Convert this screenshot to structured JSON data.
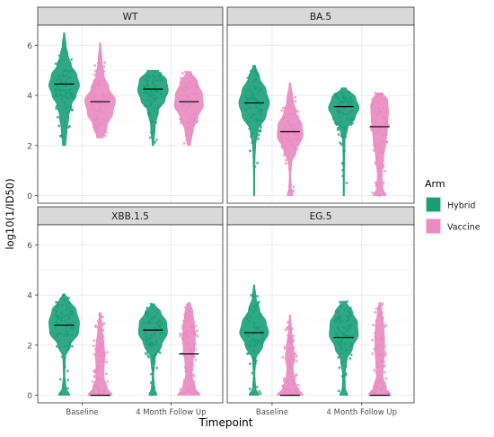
{
  "chart_data": {
    "type": "violin",
    "xlabel": "Timepoint",
    "ylabel": "log10(1/ID50)",
    "ylim": [
      -0.3,
      6.8
    ],
    "y_ticks": [
      0,
      2,
      4,
      6
    ],
    "categories": [
      "Baseline",
      "4 Month Follow Up"
    ],
    "legend": {
      "title": "Arm",
      "placement": "right",
      "entries": [
        {
          "name": "Hybrid",
          "color": "#1a9e77"
        },
        {
          "name": "Vaccine",
          "color": "#e98ac1"
        }
      ]
    },
    "colors": {
      "Hybrid": "#1a9e77",
      "Vaccine": "#e98ac1",
      "strip": "#d9d9d9",
      "panel_border": "#333333",
      "grid": "#ebebeb"
    },
    "panels": [
      {
        "title": "WT",
        "groups": [
          {
            "timepoint": "Baseline",
            "arm": "Hybrid",
            "median": 4.45,
            "profile": [
              [
                2.0,
                0.1
              ],
              [
                2.6,
                0.18
              ],
              [
                3.2,
                0.3
              ],
              [
                3.6,
                0.45
              ],
              [
                4.0,
                0.75
              ],
              [
                4.4,
                0.95
              ],
              [
                4.8,
                0.8
              ],
              [
                5.2,
                0.45
              ],
              [
                5.6,
                0.25
              ],
              [
                6.0,
                0.12
              ],
              [
                6.5,
                0.04
              ]
            ]
          },
          {
            "timepoint": "Baseline",
            "arm": "Vaccine",
            "median": 3.75,
            "profile": [
              [
                2.3,
                0.2
              ],
              [
                2.8,
                0.45
              ],
              [
                3.3,
                0.8
              ],
              [
                3.8,
                0.95
              ],
              [
                4.3,
                0.55
              ],
              [
                4.8,
                0.25
              ],
              [
                5.4,
                0.12
              ],
              [
                6.1,
                0.04
              ]
            ]
          },
          {
            "timepoint": "4 Month Follow Up",
            "arm": "Hybrid",
            "median": 4.25,
            "profile": [
              [
                2.0,
                0.05
              ],
              [
                2.8,
                0.15
              ],
              [
                3.4,
                0.35
              ],
              [
                3.8,
                0.75
              ],
              [
                4.2,
                0.95
              ],
              [
                4.6,
                0.85
              ],
              [
                5.0,
                0.35
              ]
            ]
          },
          {
            "timepoint": "4 Month Follow Up",
            "arm": "Vaccine",
            "median": 3.75,
            "profile": [
              [
                2.0,
                0.1
              ],
              [
                2.6,
                0.25
              ],
              [
                3.1,
                0.55
              ],
              [
                3.6,
                0.9
              ],
              [
                4.0,
                0.85
              ],
              [
                4.5,
                0.55
              ],
              [
                4.95,
                0.15
              ]
            ]
          }
        ]
      },
      {
        "title": "BA.5",
        "groups": [
          {
            "timepoint": "Baseline",
            "arm": "Hybrid",
            "median": 3.7,
            "profile": [
              [
                0.0,
                0.04
              ],
              [
                0.8,
                0.04
              ],
              [
                1.5,
                0.06
              ],
              [
                2.0,
                0.1
              ],
              [
                2.6,
                0.25
              ],
              [
                3.2,
                0.75
              ],
              [
                3.7,
                0.95
              ],
              [
                4.2,
                0.75
              ],
              [
                4.7,
                0.35
              ],
              [
                5.2,
                0.08
              ]
            ]
          },
          {
            "timepoint": "Baseline",
            "arm": "Vaccine",
            "median": 2.55,
            "profile": [
              [
                0.0,
                0.18
              ],
              [
                0.3,
                0.08
              ],
              [
                0.8,
                0.05
              ],
              [
                1.3,
                0.1
              ],
              [
                1.8,
                0.4
              ],
              [
                2.4,
                0.8
              ],
              [
                2.8,
                0.75
              ],
              [
                3.3,
                0.4
              ],
              [
                3.8,
                0.2
              ],
              [
                4.5,
                0.05
              ]
            ]
          },
          {
            "timepoint": "4 Month Follow Up",
            "arm": "Hybrid",
            "median": 3.55,
            "profile": [
              [
                0.0,
                0.04
              ],
              [
                0.8,
                0.04
              ],
              [
                1.5,
                0.05
              ],
              [
                2.2,
                0.08
              ],
              [
                2.7,
                0.25
              ],
              [
                3.1,
                0.7
              ],
              [
                3.5,
                0.95
              ],
              [
                3.9,
                0.75
              ],
              [
                4.3,
                0.15
              ]
            ]
          },
          {
            "timepoint": "4 Month Follow Up",
            "arm": "Vaccine",
            "median": 2.75,
            "profile": [
              [
                0.0,
                0.4
              ],
              [
                0.3,
                0.2
              ],
              [
                0.8,
                0.15
              ],
              [
                1.5,
                0.25
              ],
              [
                2.2,
                0.4
              ],
              [
                2.8,
                0.5
              ],
              [
                3.4,
                0.55
              ],
              [
                3.8,
                0.5
              ],
              [
                4.1,
                0.2
              ]
            ]
          }
        ]
      },
      {
        "title": "XBB.1.5",
        "groups": [
          {
            "timepoint": "Baseline",
            "arm": "Hybrid",
            "median": 2.8,
            "profile": [
              [
                0.0,
                0.35
              ],
              [
                0.3,
                0.12
              ],
              [
                0.8,
                0.05
              ],
              [
                1.5,
                0.08
              ],
              [
                2.0,
                0.4
              ],
              [
                2.5,
                0.9
              ],
              [
                2.9,
                0.95
              ],
              [
                3.4,
                0.75
              ],
              [
                3.8,
                0.3
              ],
              [
                4.05,
                0.05
              ]
            ]
          },
          {
            "timepoint": "Baseline",
            "arm": "Vaccine",
            "median": 0.0,
            "profile": [
              [
                0.0,
                0.75
              ],
              [
                0.3,
                0.45
              ],
              [
                0.7,
                0.25
              ],
              [
                1.1,
                0.25
              ],
              [
                1.6,
                0.3
              ],
              [
                2.0,
                0.25
              ],
              [
                2.6,
                0.15
              ],
              [
                3.3,
                0.05
              ]
            ]
          },
          {
            "timepoint": "4 Month Follow Up",
            "arm": "Hybrid",
            "median": 2.6,
            "profile": [
              [
                0.0,
                0.25
              ],
              [
                0.3,
                0.1
              ],
              [
                0.8,
                0.05
              ],
              [
                1.5,
                0.15
              ],
              [
                2.0,
                0.55
              ],
              [
                2.5,
                0.9
              ],
              [
                2.9,
                0.85
              ],
              [
                3.3,
                0.5
              ],
              [
                3.65,
                0.1
              ]
            ]
          },
          {
            "timepoint": "4 Month Follow Up",
            "arm": "Vaccine",
            "median": 1.65,
            "profile": [
              [
                0.0,
                0.7
              ],
              [
                0.3,
                0.4
              ],
              [
                0.8,
                0.2
              ],
              [
                1.3,
                0.25
              ],
              [
                1.8,
                0.35
              ],
              [
                2.3,
                0.4
              ],
              [
                2.8,
                0.35
              ],
              [
                3.3,
                0.25
              ],
              [
                3.7,
                0.08
              ]
            ]
          }
        ]
      },
      {
        "title": "EG.5",
        "groups": [
          {
            "timepoint": "Baseline",
            "arm": "Hybrid",
            "median": 2.5,
            "profile": [
              [
                0.0,
                0.3
              ],
              [
                0.3,
                0.1
              ],
              [
                0.8,
                0.05
              ],
              [
                1.4,
                0.1
              ],
              [
                2.0,
                0.55
              ],
              [
                2.5,
                0.9
              ],
              [
                2.9,
                0.75
              ],
              [
                3.4,
                0.35
              ],
              [
                3.9,
                0.12
              ],
              [
                4.4,
                0.04
              ]
            ]
          },
          {
            "timepoint": "Baseline",
            "arm": "Vaccine",
            "median": 0.0,
            "profile": [
              [
                0.0,
                0.8
              ],
              [
                0.3,
                0.45
              ],
              [
                0.7,
                0.25
              ],
              [
                1.1,
                0.2
              ],
              [
                1.5,
                0.3
              ],
              [
                2.0,
                0.2
              ],
              [
                2.6,
                0.1
              ],
              [
                3.2,
                0.04
              ]
            ]
          },
          {
            "timepoint": "4 Month Follow Up",
            "arm": "Hybrid",
            "median": 2.3,
            "profile": [
              [
                0.0,
                0.25
              ],
              [
                0.3,
                0.1
              ],
              [
                0.8,
                0.08
              ],
              [
                1.4,
                0.2
              ],
              [
                1.9,
                0.55
              ],
              [
                2.4,
                0.9
              ],
              [
                2.9,
                0.85
              ],
              [
                3.3,
                0.55
              ],
              [
                3.75,
                0.15
              ]
            ]
          },
          {
            "timepoint": "4 Month Follow Up",
            "arm": "Vaccine",
            "median": 0.0,
            "profile": [
              [
                0.0,
                0.7
              ],
              [
                0.3,
                0.4
              ],
              [
                0.8,
                0.2
              ],
              [
                1.3,
                0.25
              ],
              [
                1.8,
                0.3
              ],
              [
                2.3,
                0.3
              ],
              [
                2.8,
                0.25
              ],
              [
                3.3,
                0.15
              ],
              [
                3.7,
                0.05
              ]
            ]
          }
        ]
      }
    ]
  }
}
